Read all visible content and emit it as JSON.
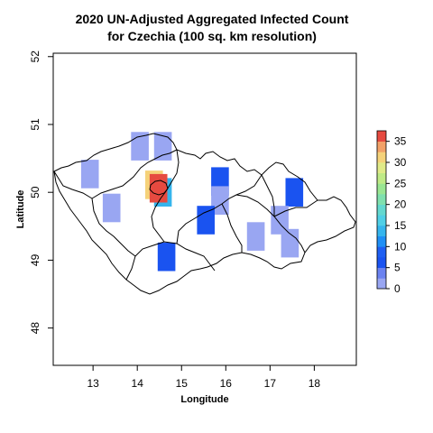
{
  "title": {
    "line1": "2020 UN-Adjusted Aggregated Infected Count",
    "line2": "for Czechia (100 sq. km resolution)"
  },
  "chart_data": {
    "type": "heatmap",
    "xlabel": "Longitude",
    "ylabel": "Latitude",
    "xlim": [
      12.1,
      18.95
    ],
    "ylim": [
      47.45,
      52.05
    ],
    "x_ticks": [
      "13",
      "14",
      "15",
      "16",
      "17",
      "18"
    ],
    "y_ticks": [
      "48",
      "49",
      "50",
      "51",
      "52"
    ],
    "legend": {
      "placement": "right",
      "ticks": [
        "0",
        "5",
        "10",
        "15",
        "20",
        "25",
        "30",
        "35"
      ],
      "bins": [
        {
          "from": 0,
          "to": 2.5,
          "color": "#99a6f2"
        },
        {
          "from": 2.5,
          "to": 5,
          "color": "#6b82f0"
        },
        {
          "from": 5,
          "to": 7.5,
          "color": "#1a53f0"
        },
        {
          "from": 7.5,
          "to": 10,
          "color": "#1f5ff2"
        },
        {
          "from": 10,
          "to": 12.5,
          "color": "#1f8ff5"
        },
        {
          "from": 12.5,
          "to": 15,
          "color": "#35b5ed"
        },
        {
          "from": 15,
          "to": 17.5,
          "color": "#4fcfe6"
        },
        {
          "from": 17.5,
          "to": 20,
          "color": "#63d8cf"
        },
        {
          "from": 20,
          "to": 22.5,
          "color": "#7fe0ae"
        },
        {
          "from": 22.5,
          "to": 25,
          "color": "#9ae692"
        },
        {
          "from": 25,
          "to": 27.5,
          "color": "#bfea86"
        },
        {
          "from": 27.5,
          "to": 30,
          "color": "#e0ea88"
        },
        {
          "from": 30,
          "to": 32.5,
          "color": "#f5d27a"
        },
        {
          "from": 32.5,
          "to": 35,
          "color": "#f2a168"
        },
        {
          "from": 35,
          "to": 37.5,
          "color": "#e64a40"
        }
      ]
    },
    "cells": [
      {
        "lon": 14.06,
        "lat": 50.68,
        "value": 2
      },
      {
        "lon": 14.58,
        "lat": 50.68,
        "value": 2
      },
      {
        "lon": 12.93,
        "lat": 50.27,
        "value": 2
      },
      {
        "lon": 14.38,
        "lat": 50.11,
        "value": 30
      },
      {
        "lon": 14.58,
        "lat": 50.0,
        "value": 13
      },
      {
        "lon": 14.48,
        "lat": 50.06,
        "value": 37
      },
      {
        "lon": 13.42,
        "lat": 49.77,
        "value": 2
      },
      {
        "lon": 15.87,
        "lat": 50.16,
        "value": 7
      },
      {
        "lon": 15.87,
        "lat": 49.88,
        "value": 2
      },
      {
        "lon": 15.55,
        "lat": 49.59,
        "value": 7
      },
      {
        "lon": 17.55,
        "lat": 50.0,
        "value": 7
      },
      {
        "lon": 17.22,
        "lat": 49.59,
        "value": 2
      },
      {
        "lon": 16.68,
        "lat": 49.35,
        "value": 2
      },
      {
        "lon": 17.45,
        "lat": 49.25,
        "value": 2
      },
      {
        "lon": 14.66,
        "lat": 49.05,
        "value": 7
      }
    ],
    "cell_size": {
      "dlon": 0.4,
      "dlat": 0.42
    },
    "boundary_color": "#000000"
  }
}
